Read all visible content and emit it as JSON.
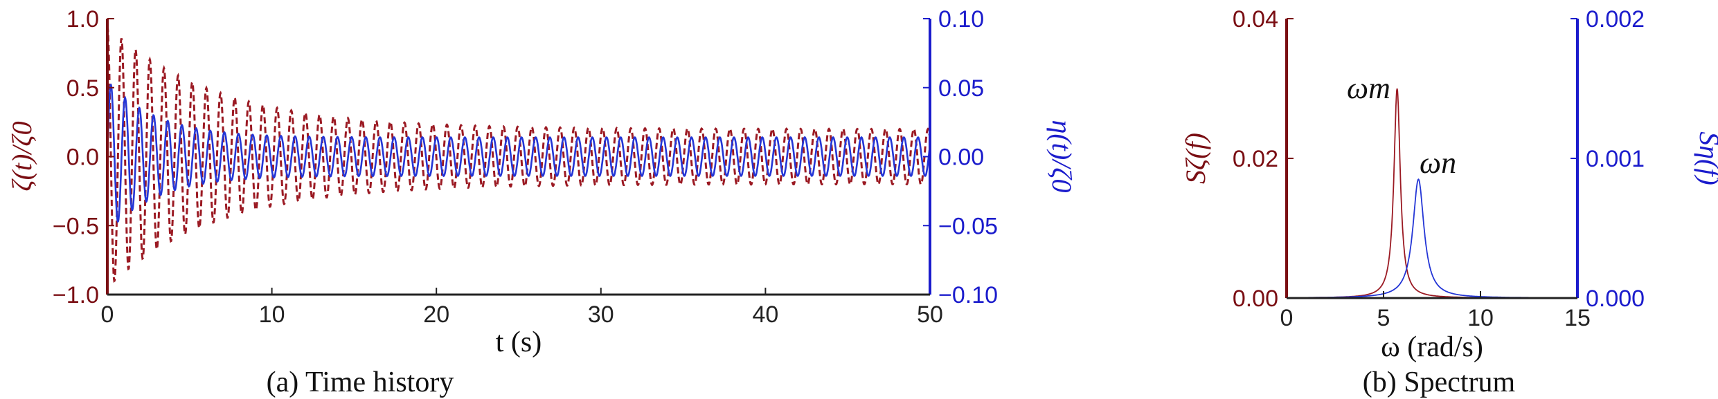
{
  "colors": {
    "left_axis": "#7a0e13",
    "right_axis": "#1b1ccc",
    "series_zeta": "#9b1a23",
    "series_eta": "#2436d6"
  },
  "chart_data": [
    {
      "type": "line",
      "caption": "(a) Time history",
      "xlabel": "t (s)",
      "ylabel_left": "ζ(t)/ζ0",
      "ylabel_right": "η(t)/ζ0",
      "xlim": [
        0,
        50
      ],
      "ylim_left": [
        -1.0,
        1.0
      ],
      "ylim_right": [
        -0.1,
        0.1
      ],
      "x_ticks": [
        "0",
        "10",
        "20",
        "30",
        "40",
        "50"
      ],
      "y_ticks_left": [
        "1.0",
        "0.5",
        "0.0",
        "−0.5",
        "−1.0"
      ],
      "y_ticks_right": [
        "0.10",
        "0.05",
        "0.00",
        "−0.05",
        "−0.10"
      ],
      "series": [
        {
          "axis": "left",
          "style": "dashed",
          "color": "#9b1a23",
          "model": {
            "period_s": 0.86,
            "amp_start": 0.95,
            "amp_end": 0.2,
            "decay_s": 6.5,
            "x_step": 0.02
          }
        },
        {
          "axis": "right",
          "style": "solid",
          "color": "#2436d6",
          "model": {
            "components": [
              {
                "freq_rad_s": 7.25,
                "amp_start": 0.055,
                "amp_end": 0.0,
                "decay_s": 3.0
              },
              {
                "freq_rad_s": 7.3,
                "amp_start": 0.0,
                "amp_end": 0.014,
                "decay_s": 3.0
              }
            ],
            "x_step": 0.02
          }
        }
      ]
    },
    {
      "type": "line",
      "caption": "(b) Spectrum",
      "xlabel": "ω (rad/s)",
      "ylabel_left": "Sζ(f)",
      "ylabel_right": "Sη(f)",
      "xlim": [
        0,
        15
      ],
      "ylim_left": [
        0.0,
        0.04
      ],
      "ylim_right": [
        0.0,
        0.002
      ],
      "x_ticks": [
        "0",
        "5",
        "10",
        "15"
      ],
      "y_ticks_left": [
        "0.04",
        "0.02",
        "0.00"
      ],
      "y_ticks_right": [
        "0.002",
        "0.001",
        "0.000"
      ],
      "annotations": [
        {
          "text": "ωm",
          "x": 5.7,
          "y_left": 0.03
        },
        {
          "text": "ωn",
          "x": 6.8,
          "y_left": 0.017
        }
      ],
      "series": [
        {
          "axis": "left",
          "color": "#9b1a23",
          "peak_x": 5.7,
          "peak_y": 0.03,
          "half_width": 0.2,
          "x_step": 0.02
        },
        {
          "axis": "right",
          "color": "#2436d6",
          "peak_x": 6.8,
          "peak_y": 0.00085,
          "half_width": 0.35,
          "x_step": 0.02
        }
      ]
    }
  ]
}
